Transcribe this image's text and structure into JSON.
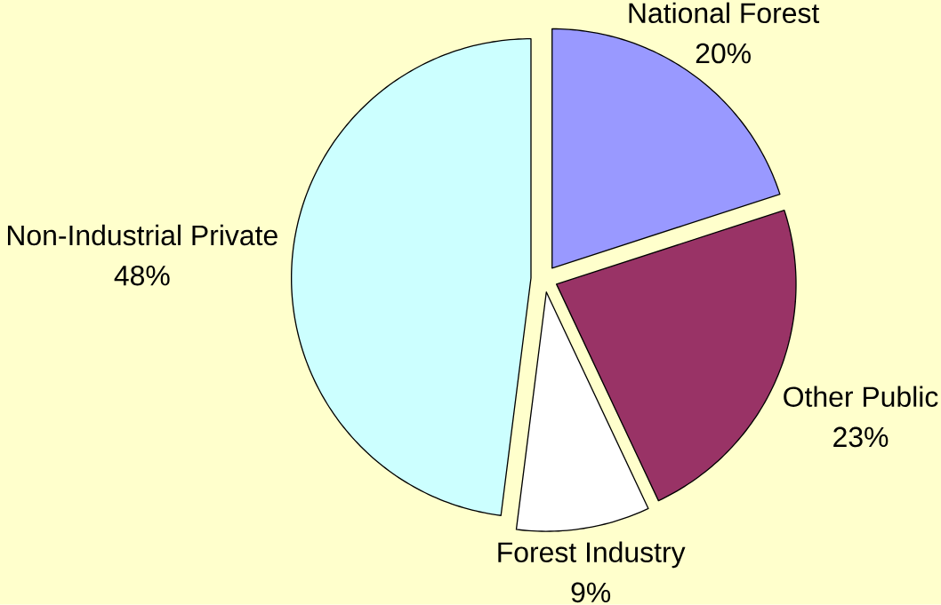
{
  "chart_data": {
    "type": "pie",
    "categories": [
      "National Forest",
      "Other Public",
      "Forest Industry",
      "Non-Industrial Private"
    ],
    "values": [
      20,
      23,
      9,
      48
    ],
    "value_labels": [
      "20%",
      "23%",
      "9%",
      "48%"
    ],
    "colors": [
      "#9999ff",
      "#993366",
      "#ffffff",
      "#ccffff"
    ]
  }
}
